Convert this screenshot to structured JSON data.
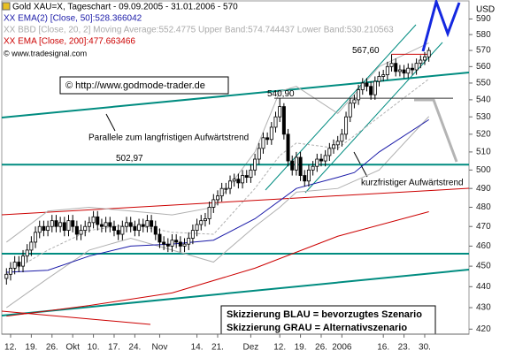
{
  "chart_data": {
    "type": "candlestick",
    "title": "Gold XAU=X, Tageschart - 09.09.2005 - 31.01.2006 - 570",
    "copyright": "© www.tradesignal.com",
    "watermark": "© http://www.godmode-trader.de",
    "y_axis_label": "USD",
    "log_scale": true,
    "ylim": [
      417.7,
      602.4
    ],
    "yticks": [
      420,
      430,
      440,
      450,
      460,
      470,
      480,
      490,
      500,
      510,
      520,
      530,
      540,
      550,
      560,
      570,
      580,
      590
    ],
    "categories": [
      null,
      "12.",
      null,
      null,
      null,
      null,
      "19.",
      null,
      null,
      null,
      null,
      "26.",
      null,
      null,
      null,
      null,
      "Okt",
      null,
      null,
      null,
      null,
      "10.",
      null,
      null,
      null,
      null,
      "17.",
      null,
      null,
      null,
      null,
      "24.",
      null,
      null,
      null,
      null,
      null,
      "Nov",
      null,
      null,
      null,
      null,
      null,
      null,
      null,
      null,
      "14.",
      null,
      null,
      null,
      null,
      "21.",
      null,
      null,
      null,
      null,
      null,
      null,
      null,
      "Dez",
      null,
      null,
      null,
      null,
      null,
      null,
      "12.",
      null,
      null,
      null,
      null,
      "19.",
      null,
      null,
      null,
      null,
      "26.",
      null,
      null,
      null,
      null,
      "2006",
      null,
      null,
      null,
      null,
      null,
      null,
      null,
      null,
      null,
      "16.",
      null,
      null,
      null,
      null,
      "23.",
      null,
      null,
      null,
      null,
      "30.",
      null
    ],
    "open": [
      444,
      446,
      449,
      452,
      450,
      455,
      458,
      462,
      467,
      470,
      468,
      470,
      473,
      470,
      472,
      468,
      473,
      470,
      466,
      468,
      470,
      472,
      475,
      471,
      470,
      472,
      470,
      468,
      466,
      470,
      472,
      470,
      468,
      471,
      470,
      473,
      470,
      466,
      462,
      461,
      460,
      463,
      462,
      460,
      461,
      464,
      468,
      471,
      473,
      474,
      480,
      484,
      486,
      490,
      490,
      494,
      495,
      493,
      497,
      496,
      500,
      506,
      512,
      518,
      517,
      524,
      530,
      536,
      520,
      505,
      500,
      507,
      497,
      494,
      500,
      502,
      506,
      505,
      508,
      512,
      514,
      516,
      520,
      530,
      538,
      540,
      546,
      550,
      548,
      543,
      551,
      554,
      555,
      560,
      562,
      557,
      558,
      556,
      559,
      558,
      562,
      564,
      566
    ],
    "high": [
      449,
      452,
      455,
      455,
      458,
      461,
      465,
      470,
      473,
      473,
      473,
      476,
      476,
      475,
      475,
      476,
      476,
      473,
      471,
      473,
      475,
      478,
      478,
      474,
      475,
      475,
      473,
      471,
      473,
      475,
      475,
      473,
      474,
      474,
      476,
      476,
      473,
      469,
      465,
      464,
      466,
      466,
      465,
      464,
      467,
      471,
      474,
      476,
      477,
      483,
      487,
      489,
      493,
      493,
      497,
      498,
      498,
      500,
      500,
      503,
      509,
      515,
      521,
      521,
      527,
      533,
      540.9,
      538,
      523,
      508,
      510,
      510,
      500,
      503,
      505,
      509,
      509,
      511,
      515,
      517,
      519,
      523,
      533,
      541,
      543,
      549,
      553,
      553,
      551,
      554,
      557,
      558,
      563,
      567.6,
      565,
      561,
      561,
      562,
      562,
      565,
      567,
      569,
      572
    ],
    "low": [
      441,
      443,
      446,
      447,
      447,
      452,
      455,
      459,
      464,
      465,
      465,
      467,
      467,
      467,
      465,
      465,
      467,
      463,
      463,
      465,
      467,
      469,
      468,
      467,
      467,
      467,
      465,
      463,
      463,
      467,
      467,
      465,
      465,
      467,
      467,
      467,
      463,
      459,
      458,
      457,
      457,
      459,
      457,
      457,
      458,
      461,
      465,
      468,
      470,
      471,
      477,
      481,
      483,
      487,
      487,
      491,
      490,
      490,
      493,
      493,
      497,
      503,
      509,
      514,
      514,
      521,
      527,
      517,
      502,
      497,
      497,
      494,
      491,
      491,
      497,
      499,
      502,
      502,
      505,
      509,
      511,
      513,
      517,
      527,
      535,
      537,
      543,
      545,
      540,
      540,
      548,
      551,
      552,
      557,
      554,
      554,
      553,
      553,
      555,
      555,
      559,
      561,
      563
    ],
    "close": [
      446,
      449,
      452,
      450,
      455,
      458,
      462,
      467,
      470,
      468,
      470,
      473,
      470,
      472,
      468,
      473,
      470,
      466,
      468,
      470,
      472,
      475,
      471,
      470,
      472,
      470,
      468,
      466,
      470,
      472,
      470,
      468,
      471,
      470,
      473,
      470,
      466,
      462,
      461,
      460,
      463,
      462,
      460,
      461,
      464,
      468,
      471,
      473,
      474,
      480,
      484,
      486,
      490,
      490,
      494,
      495,
      493,
      497,
      496,
      500,
      506,
      512,
      518,
      517,
      524,
      530,
      536,
      520,
      505,
      500,
      507,
      497,
      494,
      500,
      502,
      506,
      505,
      508,
      512,
      514,
      516,
      520,
      530,
      538,
      540,
      546,
      550,
      548,
      543,
      551,
      554,
      555,
      560,
      562,
      557,
      558,
      556,
      559,
      558,
      562,
      564,
      566,
      570
    ],
    "bollinger": {
      "name": "XX BBD [Close, 20, 2] Moving Average:552.4775 Upper Band:574.744437 Lower Band:530.210563",
      "color": "#b0b0b0",
      "x": [
        0,
        10,
        20,
        30,
        40,
        50,
        60,
        66,
        70,
        80,
        90,
        102
      ],
      "middle": [
        446,
        458,
        468,
        471,
        467,
        466,
        490,
        508,
        515,
        512,
        530,
        552.4775
      ],
      "upper": [
        462,
        478,
        480,
        478,
        476,
        480,
        510,
        545,
        548,
        532,
        560,
        574.744437
      ],
      "lower": [
        430,
        444,
        458,
        464,
        458,
        452,
        470,
        480,
        488,
        490,
        500,
        530.210563
      ]
    },
    "series": [
      {
        "name": "XX EMA(2) [Close, 50]:528.366042",
        "color": "#1a1aa8",
        "x": [
          0,
          10,
          20,
          30,
          40,
          50,
          60,
          70,
          80,
          84,
          90,
          102
        ],
        "values": [
          447,
          448,
          455,
          460,
          461,
          463,
          474,
          490,
          496,
          498.6,
          510,
          528.366042
        ]
      },
      {
        "name": "XX EMA [Close, 200]:477.663466",
        "color": "#cc0000",
        "x": [
          0,
          20,
          40,
          60,
          80,
          102
        ],
        "values": [
          426,
          431,
          437,
          449,
          465,
          477.663466
        ]
      }
    ],
    "levels": [
      {
        "label": "540,90",
        "value": 540.9,
        "color": "#333333"
      },
      {
        "label": "502,97",
        "value": 502.97,
        "color": "#008c80"
      },
      {
        "label": "567,60",
        "value": 567.6,
        "color": "#cc0000"
      }
    ],
    "annotations": [
      "Parallele zum langfristigen Aufwärtstrend",
      "kurzfristiger Aufwärtstrend"
    ],
    "scenario_box": [
      "Skizzierung BLAU = bevorzugtes Szenario",
      "Skizzierung GRAU = Alternativszenario"
    ]
  }
}
